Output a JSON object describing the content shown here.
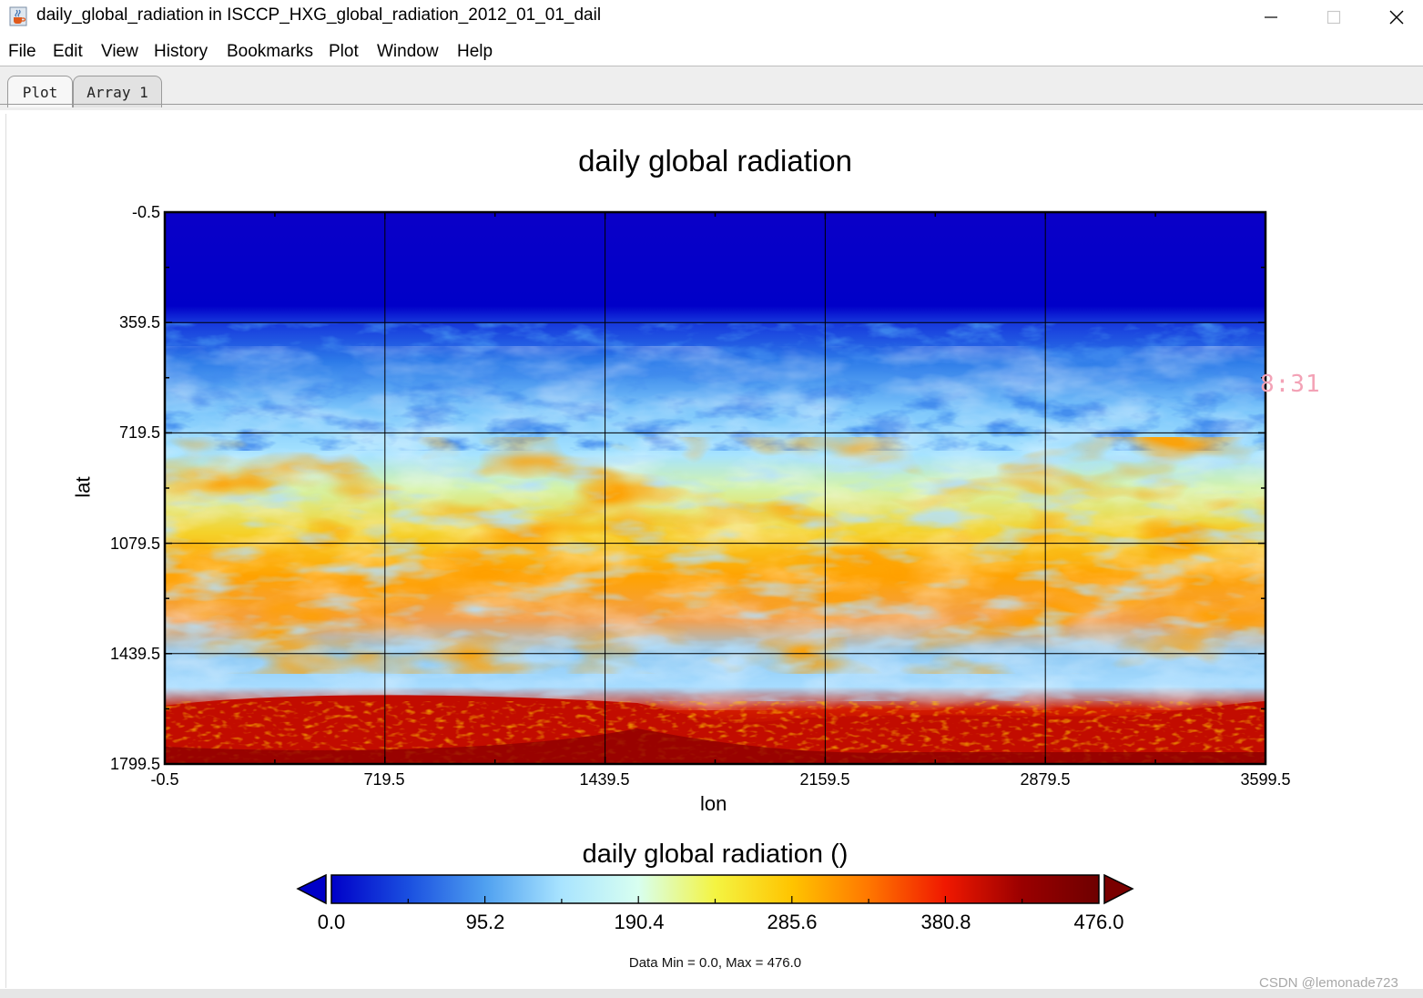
{
  "window": {
    "title": "daily_global_radiation in ISCCP_HXG_global_radiation_2012_01_01_dail",
    "icon": "java-cup-icon",
    "controls": [
      "minimize-icon",
      "maximize-icon",
      "close-icon"
    ]
  },
  "menu": {
    "items": [
      "File",
      "Edit",
      "View",
      "History",
      "Bookmarks",
      "Plot",
      "Window",
      "Help"
    ]
  },
  "tabs": [
    {
      "label": "Plot",
      "selected": true
    },
    {
      "label": "Array 1",
      "selected": false
    }
  ],
  "overlay": {
    "clock_text": "8:31"
  },
  "chart_data": {
    "type": "heatmap",
    "title": "daily global radiation",
    "xlabel": "lon",
    "ylabel": "lat",
    "x_ticks": [
      "-0.5",
      "719.5",
      "1439.5",
      "2159.5",
      "2879.5",
      "3599.5"
    ],
    "y_ticks": [
      "-0.5",
      "359.5",
      "719.5",
      "1079.5",
      "1439.5",
      "1799.5"
    ],
    "xlim": [
      -0.5,
      3599.5
    ],
    "ylim": [
      -0.5,
      1799.5
    ],
    "y_inverted": true,
    "grid": true,
    "colorbar": {
      "title": "daily global radiation ()",
      "ticks": [
        "0.0",
        "95.2",
        "190.4",
        "285.6",
        "380.8",
        "476.0"
      ],
      "min": 0.0,
      "max": 476.0,
      "colormap": [
        "#0000c8",
        "#1a4fe0",
        "#4fa0f0",
        "#a9e4ff",
        "#d8fff0",
        "#f4f442",
        "#ffc400",
        "#ff7700",
        "#f01800",
        "#9a0000",
        "#6e0000"
      ],
      "extend_low_color": "#0000c8",
      "extend_high_color": "#7a0000"
    },
    "stats_text": "Data Min = 0.0, Max = 476.0",
    "bands": [
      {
        "lat_from": -0.5,
        "lat_to": 359.5,
        "description": "uniform deep blue, near zero radiation",
        "value": 10
      },
      {
        "lat_from": 359.5,
        "lat_to": 719.5,
        "description": "blue to light blue cloud patterns",
        "value": 120
      },
      {
        "lat_from": 719.5,
        "lat_to": 1079.5,
        "description": "light blue mixed with yellow and orange",
        "value": 250
      },
      {
        "lat_from": 1079.5,
        "lat_to": 1439.5,
        "description": "orange and red swirls with light blue",
        "value": 300
      },
      {
        "lat_from": 1439.5,
        "lat_to": 1799.5,
        "description": "light blue then dark red at the bottom",
        "value": 420
      }
    ]
  },
  "watermark": "CSDN @lemonade723"
}
